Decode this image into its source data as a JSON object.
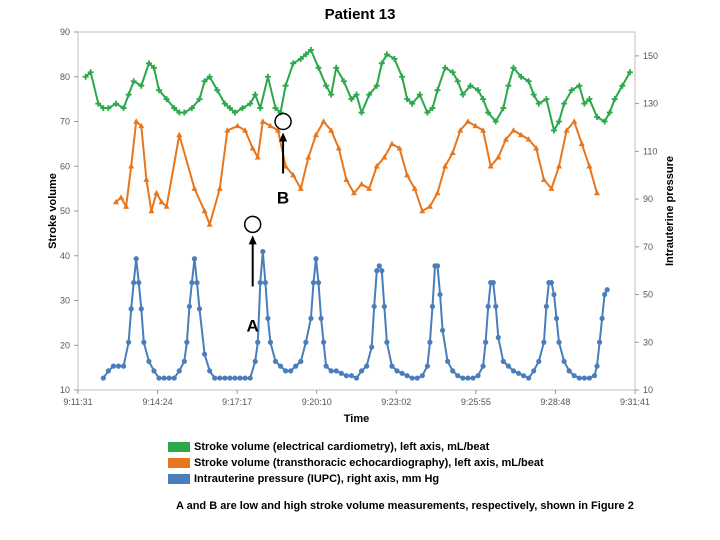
{
  "chart_data": {
    "type": "line",
    "title": "Patient 13",
    "xlabel": "Time",
    "ylabel": "Stroke volume",
    "y2label": "Intrauterine pressure",
    "x_ticks": [
      "9:11:31",
      "9:14:24",
      "9:17:17",
      "9:20:10",
      "9:23:02",
      "9:25:55",
      "9:28:48",
      "9:31:41"
    ],
    "x_range_min": [
      0,
      22
    ],
    "ylim": [
      10,
      90
    ],
    "y_ticks": [
      10,
      20,
      30,
      40,
      50,
      60,
      70,
      80,
      90
    ],
    "y2lim": [
      10,
      160
    ],
    "y2_ticks": [
      10,
      30,
      50,
      70,
      90,
      110,
      130,
      150
    ],
    "grid": false,
    "legend_position": "bottom",
    "series": [
      {
        "name": "Stroke volume (electrical cardiometry), left axis, mL/beat",
        "axis": "left",
        "color": "#2aa84a",
        "marker": "plus",
        "x": [
          0.3,
          0.5,
          0.8,
          1.0,
          1.2,
          1.5,
          1.8,
          2.0,
          2.2,
          2.5,
          2.8,
          3.0,
          3.2,
          3.5,
          3.8,
          4.0,
          4.2,
          4.5,
          4.8,
          5.0,
          5.2,
          5.5,
          5.8,
          6.0,
          6.2,
          6.5,
          6.8,
          7.0,
          7.2,
          7.5,
          7.8,
          8.0,
          8.2,
          8.5,
          8.8,
          9.0,
          9.2,
          9.5,
          9.8,
          10.0,
          10.2,
          10.5,
          10.8,
          11.0,
          11.2,
          11.5,
          11.8,
          12.0,
          12.2,
          12.5,
          12.8,
          13.0,
          13.2,
          13.5,
          13.8,
          14.0,
          14.2,
          14.5,
          14.8,
          15.0,
          15.2,
          15.5,
          15.8,
          16.0,
          16.2,
          16.5,
          16.8,
          17.0,
          17.2,
          17.5,
          17.8,
          18.0,
          18.2,
          18.5,
          18.8,
          19.0,
          19.2,
          19.5,
          19.8,
          20.0,
          20.2,
          20.5,
          20.8,
          21.0,
          21.2,
          21.5,
          21.8
        ],
        "y": [
          80,
          81,
          74,
          73,
          73,
          74,
          73,
          76,
          79,
          78,
          83,
          82,
          77,
          75,
          73,
          72,
          72,
          73,
          75,
          79,
          80,
          77,
          74,
          73,
          72,
          73,
          74,
          76,
          73,
          80,
          73,
          72,
          78,
          83,
          84,
          85,
          86,
          82,
          78,
          76,
          82,
          79,
          75,
          76,
          72,
          76,
          78,
          83,
          85,
          84,
          80,
          75,
          74,
          76,
          72,
          73,
          77,
          82,
          81,
          79,
          76,
          78,
          77,
          75,
          72,
          70,
          73,
          78,
          82,
          80,
          79,
          76,
          74,
          75,
          68,
          70,
          74,
          77,
          78,
          74,
          75,
          71,
          70,
          72,
          75,
          78,
          81
        ]
      },
      {
        "name": "Stroke volume (transthoracic echocardiography), left axis, mL/beat",
        "axis": "left",
        "color": "#e8761c",
        "marker": "triangle",
        "x": [
          1.5,
          1.7,
          1.9,
          2.1,
          2.3,
          2.5,
          2.7,
          2.9,
          3.1,
          3.3,
          3.5,
          4.0,
          4.6,
          5.0,
          5.2,
          5.6,
          5.9,
          6.3,
          6.6,
          6.9,
          7.1,
          7.3,
          7.6,
          7.9,
          8.2,
          8.5,
          8.8,
          9.1,
          9.4,
          9.7,
          10.0,
          10.3,
          10.6,
          10.9,
          11.2,
          11.5,
          11.8,
          12.1,
          12.4,
          12.7,
          13.0,
          13.3,
          13.6,
          13.9,
          14.2,
          14.5,
          14.8,
          15.1,
          15.4,
          15.7,
          16.0,
          16.3,
          16.6,
          16.9,
          17.2,
          17.5,
          17.8,
          18.1,
          18.4,
          18.7,
          19.0,
          19.3,
          19.6,
          19.9,
          20.2,
          20.5
        ],
        "y": [
          52,
          53,
          51,
          60,
          70,
          69,
          57,
          50,
          54,
          52,
          51,
          67,
          55,
          50,
          47,
          55,
          68,
          69,
          68,
          64,
          62,
          70,
          69,
          68,
          60,
          58,
          55,
          62,
          67,
          70,
          68,
          64,
          57,
          54,
          56,
          55,
          60,
          62,
          65,
          64,
          58,
          55,
          50,
          51,
          54,
          60,
          63,
          68,
          70,
          69,
          68,
          60,
          62,
          66,
          68,
          67,
          66,
          64,
          57,
          55,
          60,
          68,
          70,
          65,
          60,
          54
        ]
      },
      {
        "name": "Intrauterine pressure (IUPC), right axis, mm Hg",
        "axis": "right",
        "color": "#4a7ebb",
        "marker": "circle",
        "x": [
          1.0,
          1.2,
          1.4,
          1.6,
          1.8,
          2.0,
          2.1,
          2.2,
          2.3,
          2.4,
          2.5,
          2.6,
          2.8,
          3.0,
          3.2,
          3.4,
          3.6,
          3.8,
          4.0,
          4.2,
          4.3,
          4.4,
          4.5,
          4.6,
          4.7,
          4.8,
          5.0,
          5.2,
          5.4,
          5.6,
          5.8,
          6.0,
          6.2,
          6.4,
          6.6,
          6.8,
          7.0,
          7.1,
          7.2,
          7.3,
          7.4,
          7.5,
          7.6,
          7.8,
          8.0,
          8.2,
          8.4,
          8.6,
          8.8,
          9.0,
          9.2,
          9.3,
          9.4,
          9.5,
          9.6,
          9.7,
          9.8,
          10.0,
          10.2,
          10.4,
          10.6,
          10.8,
          11.0,
          11.2,
          11.4,
          11.6,
          11.7,
          11.8,
          11.9,
          12.0,
          12.1,
          12.2,
          12.4,
          12.6,
          12.8,
          13.0,
          13.2,
          13.4,
          13.6,
          13.8,
          13.9,
          14.0,
          14.1,
          14.2,
          14.3,
          14.4,
          14.6,
          14.8,
          15.0,
          15.2,
          15.4,
          15.6,
          15.8,
          16.0,
          16.1,
          16.2,
          16.3,
          16.4,
          16.5,
          16.6,
          16.8,
          17.0,
          17.2,
          17.4,
          17.6,
          17.8,
          18.0,
          18.2,
          18.4,
          18.5,
          18.6,
          18.7,
          18.8,
          18.9,
          19.0,
          19.2,
          19.4,
          19.6,
          19.8,
          20.0,
          20.2,
          20.4,
          20.5,
          20.6,
          20.7,
          20.8,
          20.9
        ],
        "y": [
          15,
          18,
          20,
          20,
          20,
          30,
          44,
          55,
          65,
          55,
          44,
          30,
          22,
          18,
          15,
          15,
          15,
          15,
          18,
          22,
          30,
          45,
          55,
          65,
          55,
          44,
          25,
          18,
          15,
          15,
          15,
          15,
          15,
          15,
          15,
          15,
          22,
          30,
          55,
          68,
          55,
          40,
          30,
          22,
          20,
          18,
          18,
          20,
          22,
          30,
          40,
          55,
          65,
          55,
          40,
          30,
          20,
          18,
          18,
          17,
          16,
          16,
          15,
          18,
          20,
          28,
          45,
          60,
          62,
          60,
          45,
          30,
          20,
          18,
          17,
          16,
          15,
          15,
          16,
          20,
          30,
          45,
          62,
          62,
          50,
          35,
          22,
          18,
          16,
          15,
          15,
          15,
          16,
          20,
          30,
          45,
          55,
          55,
          45,
          32,
          22,
          20,
          18,
          17,
          16,
          15,
          18,
          22,
          30,
          45,
          55,
          55,
          50,
          40,
          30,
          22,
          18,
          16,
          15,
          15,
          15,
          16,
          20,
          30,
          40,
          50,
          52
        ]
      }
    ],
    "annotations": [
      {
        "label": "A",
        "x": 6.9,
        "y": 47
      },
      {
        "label": "B",
        "x": 8.1,
        "y": 70
      }
    ],
    "legend_labels": [
      "Stroke volume (electrical cardiometry), left axis, mL/beat",
      "Stroke volume (transthoracic echocardiography), left axis, mL/beat",
      "Intrauterine pressure (IUPC), right axis, mm Hg"
    ],
    "caption": "A and B are low and high stroke volume measurements, respectively, shown in Figure 2"
  }
}
